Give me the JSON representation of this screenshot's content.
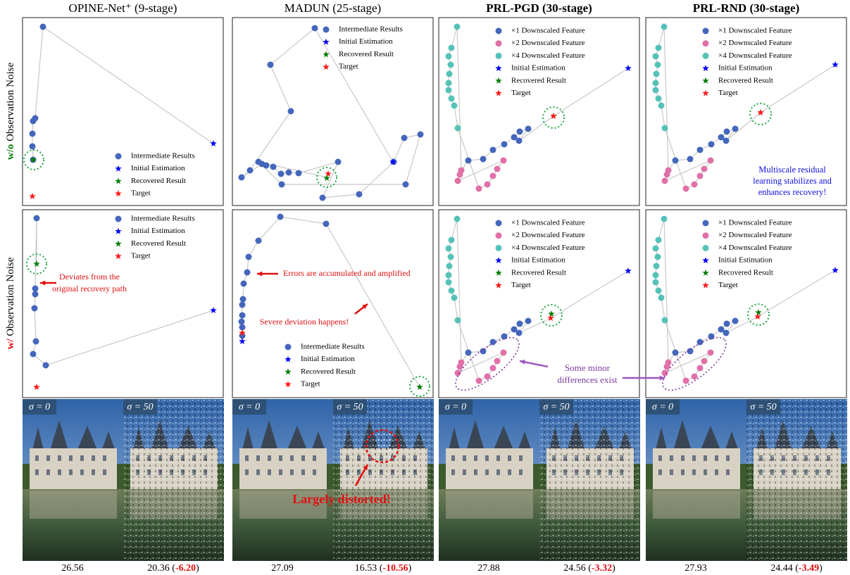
{
  "columns": [
    {
      "title": "OPINE-Net⁺ (9-stage)",
      "clean_score": "26.56",
      "noisy_score": "20.36",
      "noisy_open": " (",
      "drop": "-6.20",
      "noisy_close": ")"
    },
    {
      "title": "MADUN (25-stage)",
      "clean_score": "27.09",
      "noisy_score": "16.53",
      "noisy_open": " (",
      "drop": "-10.56",
      "noisy_close": ")"
    },
    {
      "title": "PRL-PGD (30-stage)",
      "clean_score": "27.88",
      "noisy_score": "24.56",
      "noisy_open": " (",
      "drop": "-3.32",
      "noisy_close": ")"
    },
    {
      "title": "PRL-RND (30-stage)",
      "clean_score": "27.93",
      "noisy_score": "24.44",
      "noisy_open": " (",
      "drop": "-3.49",
      "noisy_close": ")"
    }
  ],
  "rows": [
    {
      "label_key": "w/o",
      "label_rest": " Observation Noise"
    },
    {
      "label_key": "w/",
      "label_rest": " Observation Noise"
    }
  ],
  "legend_single": [
    "Intermediate Results",
    "Initial Estimation",
    "Recovered Result",
    "Target"
  ],
  "legend_multiscale": [
    "×1 Downscaled Feature",
    "×2 Downscaled Feature",
    "×4 Downscaled Feature",
    "Initial Estimation",
    "Recovered Result",
    "Target"
  ],
  "annotations": {
    "deviates": [
      "Deviates from the",
      "original recovery path"
    ],
    "errors": "Errors are accumulated and amplified",
    "severe": "Severe deviation happens!",
    "minor": [
      "Some minor",
      "differences exist"
    ],
    "multiscale": [
      "Multiscale residual",
      "learning stabilizes and",
      "enhances recovery!"
    ],
    "distorted": "Largely distorted!"
  },
  "noise_labels": [
    "σ = 0",
    "σ = 50"
  ]
}
